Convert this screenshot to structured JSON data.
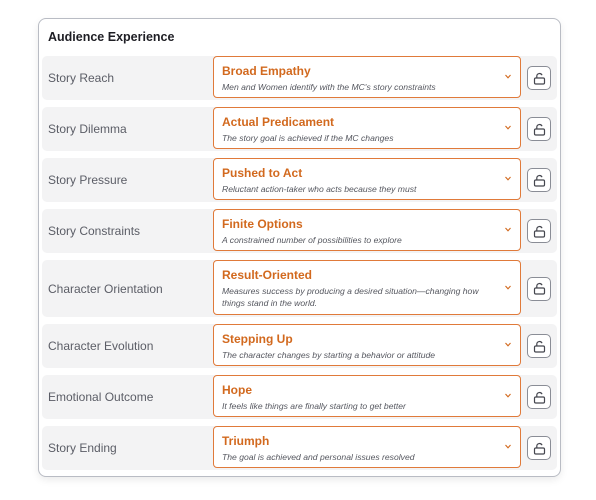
{
  "panel": {
    "title": "Audience Experience",
    "rows": [
      {
        "label": "Story Reach",
        "value": "Broad Empathy",
        "description": "Men and Women identify with the MC's story constraints"
      },
      {
        "label": "Story Dilemma",
        "value": "Actual Predicament",
        "description": "The story goal is achieved if the MC changes"
      },
      {
        "label": "Story Pressure",
        "value": "Pushed to Act",
        "description": "Reluctant action-taker who acts because they must"
      },
      {
        "label": "Story Constraints",
        "value": "Finite Options",
        "description": "A constrained number of possibilities to explore"
      },
      {
        "label": "Character Orientation",
        "value": "Result-Oriented",
        "description": "Measures success by producing a desired situation—changing how things stand in the world."
      },
      {
        "label": "Character Evolution",
        "value": "Stepping Up",
        "description": "The character changes by starting a behavior or attitude"
      },
      {
        "label": "Emotional Outcome",
        "value": "Hope",
        "description": "It feels like things are finally starting to get better"
      },
      {
        "label": "Story Ending",
        "value": "Triumph",
        "description": "The goal is achieved and personal issues resolved"
      }
    ]
  }
}
